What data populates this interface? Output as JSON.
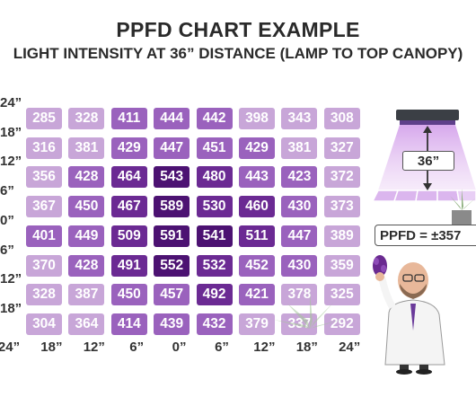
{
  "title": "PPFD CHART EXAMPLE",
  "subtitle": "LIGHT INTENSITY AT 36” DISTANCE (LAMP TO TOP CANOPY)",
  "colors": {
    "low": "#c8a6d8",
    "mid": "#9a62bd",
    "high": "#6b2a93",
    "peak": "#4c1272"
  },
  "distance_label": "36”",
  "ppfd_label": "PPFD = ±357",
  "chart_data": {
    "type": "heatmap",
    "x_labels": [
      "24”",
      "18”",
      "12”",
      "6”",
      "0”",
      "6”",
      "12”",
      "18”",
      "24”"
    ],
    "y_labels": [
      "24”",
      "18”",
      "12”",
      "6”",
      "0”",
      "6”",
      "12”",
      "18”"
    ],
    "values": [
      [
        285,
        328,
        411,
        444,
        442,
        398,
        343,
        308
      ],
      [
        316,
        381,
        429,
        447,
        451,
        429,
        381,
        327
      ],
      [
        356,
        428,
        464,
        543,
        480,
        443,
        423,
        372
      ],
      [
        367,
        450,
        467,
        589,
        530,
        460,
        430,
        373
      ],
      [
        401,
        449,
        509,
        591,
        541,
        511,
        447,
        389
      ],
      [
        370,
        428,
        491,
        552,
        532,
        452,
        430,
        359
      ],
      [
        328,
        387,
        450,
        457,
        492,
        421,
        378,
        325
      ],
      [
        304,
        364,
        414,
        439,
        432,
        379,
        337,
        292
      ]
    ]
  }
}
